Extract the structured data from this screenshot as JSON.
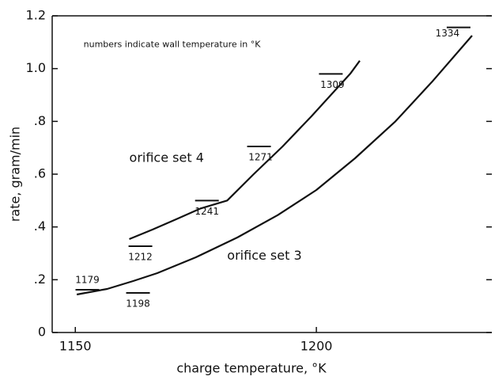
{
  "chart_data": {
    "type": "line",
    "xlabel": "charge temperature, °K",
    "ylabel": "rate, gram/min",
    "annotations": [
      {
        "text": "numbers indicate wall temperature in °K",
        "x": 1151.7,
        "y": 1.09
      },
      {
        "text": "orifice set 4",
        "x": 1161.2,
        "y": 0.66
      },
      {
        "text": "orifice set 3",
        "x": 1181.5,
        "y": 0.29
      }
    ],
    "xlim": [
      1145.2,
      1236.4
    ],
    "xticks": [
      1150,
      1200
    ],
    "ylim": [
      0,
      1.2
    ],
    "yticks": [
      0,
      {
        "value": 0.2,
        "label": ".2"
      },
      {
        "value": 0.4,
        "label": ".4"
      },
      {
        "value": 0.6,
        "label": ".6"
      },
      {
        "value": 0.8,
        "label": ".8"
      },
      {
        "value": 1.0,
        "label": "1.0"
      },
      1.2
    ],
    "series": [
      {
        "name": "orifice set 4",
        "color": "#111111",
        "x": [
          1161.2,
          1166,
          1171,
          1176,
          1181.5,
          1187,
          1193,
          1199,
          1203,
          1207,
          1209
        ],
        "values": [
          0.354,
          0.39,
          0.43,
          0.47,
          0.5,
          0.6,
          0.705,
          0.82,
          0.9,
          0.98,
          1.03
        ]
      },
      {
        "name": "orifice set 3",
        "color": "#111111",
        "x": [
          1150.3,
          1156.6,
          1162,
          1167,
          1175,
          1183.6,
          1192,
          1200,
          1208,
          1216.4,
          1224,
          1232.3
        ],
        "values": [
          0.144,
          0.165,
          0.195,
          0.225,
          0.285,
          0.36,
          0.445,
          0.54,
          0.66,
          0.8,
          0.95,
          1.125
        ]
      }
    ],
    "wall_marks": [
      {
        "label": 1179,
        "x": 1152.5,
        "y": 0.162
      },
      {
        "label": 1198,
        "x": 1163,
        "y": 0.15
      },
      {
        "label": 1212,
        "x": 1163.5,
        "y": 0.327
      },
      {
        "label": 1241,
        "x": 1177.3,
        "y": 0.5
      },
      {
        "label": 1271,
        "x": 1188.1,
        "y": 0.705
      },
      {
        "label": 1309,
        "x": 1203,
        "y": 0.98
      },
      {
        "label": 1334,
        "x": 1229.5,
        "y": 1.156
      }
    ]
  }
}
